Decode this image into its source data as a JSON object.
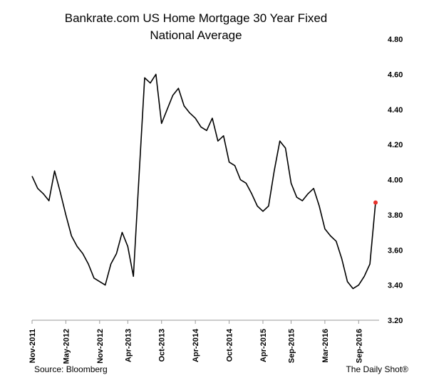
{
  "chart_data": {
    "type": "line",
    "title_lines": [
      "Bankrate.com US Home Mortgage 30 Year Fixed",
      "National Average"
    ],
    "x_start": "2011-11",
    "x_end": "2016-12",
    "x_ticks": [
      "Nov-2011",
      "May-2012",
      "Nov-2012",
      "Apr-2013",
      "Oct-2013",
      "Apr-2014",
      "Oct-2014",
      "Apr-2015",
      "Sep-2015",
      "Mar-2016",
      "Sep-2016"
    ],
    "y_ticks": [
      "3.20",
      "3.40",
      "3.60",
      "3.80",
      "4.00",
      "4.20",
      "4.40",
      "4.60",
      "4.80"
    ],
    "ylim": [
      3.2,
      4.8
    ],
    "y_axis_side": "right",
    "grid": false,
    "line_color": "#000000",
    "marker_color": "#e8322b",
    "series": [
      {
        "points": [
          [
            "2011-11",
            4.02
          ],
          [
            "2011-12",
            3.95
          ],
          [
            "2012-01",
            3.92
          ],
          [
            "2012-02",
            3.88
          ],
          [
            "2012-03",
            4.05
          ],
          [
            "2012-04",
            3.93
          ],
          [
            "2012-05",
            3.8
          ],
          [
            "2012-06",
            3.68
          ],
          [
            "2012-07",
            3.62
          ],
          [
            "2012-08",
            3.58
          ],
          [
            "2012-09",
            3.52
          ],
          [
            "2012-10",
            3.44
          ],
          [
            "2012-11",
            3.42
          ],
          [
            "2012-12",
            3.4
          ],
          [
            "2013-01",
            3.52
          ],
          [
            "2013-02",
            3.58
          ],
          [
            "2013-03",
            3.7
          ],
          [
            "2013-04",
            3.62
          ],
          [
            "2013-05",
            3.45
          ],
          [
            "2013-06",
            4.02
          ],
          [
            "2013-07",
            4.58
          ],
          [
            "2013-08",
            4.55
          ],
          [
            "2013-09",
            4.6
          ],
          [
            "2013-10",
            4.32
          ],
          [
            "2013-11",
            4.4
          ],
          [
            "2013-12",
            4.48
          ],
          [
            "2014-01",
            4.52
          ],
          [
            "2014-02",
            4.42
          ],
          [
            "2014-03",
            4.38
          ],
          [
            "2014-04",
            4.35
          ],
          [
            "2014-05",
            4.3
          ],
          [
            "2014-06",
            4.28
          ],
          [
            "2014-07",
            4.35
          ],
          [
            "2014-08",
            4.22
          ],
          [
            "2014-09",
            4.25
          ],
          [
            "2014-10",
            4.1
          ],
          [
            "2014-11",
            4.08
          ],
          [
            "2014-12",
            4.0
          ],
          [
            "2015-01",
            3.98
          ],
          [
            "2015-02",
            3.92
          ],
          [
            "2015-03",
            3.85
          ],
          [
            "2015-04",
            3.82
          ],
          [
            "2015-05",
            3.85
          ],
          [
            "2015-06",
            4.05
          ],
          [
            "2015-07",
            4.22
          ],
          [
            "2015-08",
            4.18
          ],
          [
            "2015-09",
            3.98
          ],
          [
            "2015-10",
            3.9
          ],
          [
            "2015-11",
            3.88
          ],
          [
            "2015-12",
            3.92
          ],
          [
            "2016-01",
            3.95
          ],
          [
            "2016-02",
            3.85
          ],
          [
            "2016-03",
            3.72
          ],
          [
            "2016-04",
            3.68
          ],
          [
            "2016-05",
            3.65
          ],
          [
            "2016-06",
            3.55
          ],
          [
            "2016-07",
            3.42
          ],
          [
            "2016-08",
            3.38
          ],
          [
            "2016-09",
            3.4
          ],
          [
            "2016-10",
            3.45
          ],
          [
            "2016-11",
            3.52
          ],
          [
            "2016-12",
            3.87
          ]
        ]
      }
    ]
  },
  "footer": {
    "source": "Source: Bloomberg",
    "brand": "The Daily Shot®"
  }
}
